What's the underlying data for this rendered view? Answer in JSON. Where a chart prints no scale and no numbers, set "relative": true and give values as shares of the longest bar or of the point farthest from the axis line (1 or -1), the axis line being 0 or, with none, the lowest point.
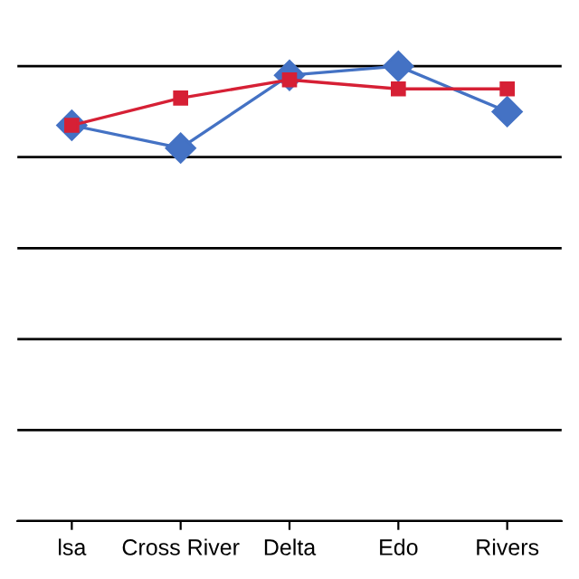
{
  "chart_data": {
    "type": "line",
    "relative": true,
    "categories": [
      "lsa",
      "Cross River",
      "Delta",
      "Edo",
      "Rivers"
    ],
    "series": [
      {
        "color": "#4472c4",
        "marker": "diamond",
        "values": [
          0.87,
          0.82,
          0.98,
          1,
          0.9
        ]
      },
      {
        "color": "#d62035",
        "marker": "square",
        "values": [
          0.87,
          0.93,
          0.97,
          0.95,
          0.95
        ]
      }
    ],
    "grid": "y",
    "legend": false
  }
}
